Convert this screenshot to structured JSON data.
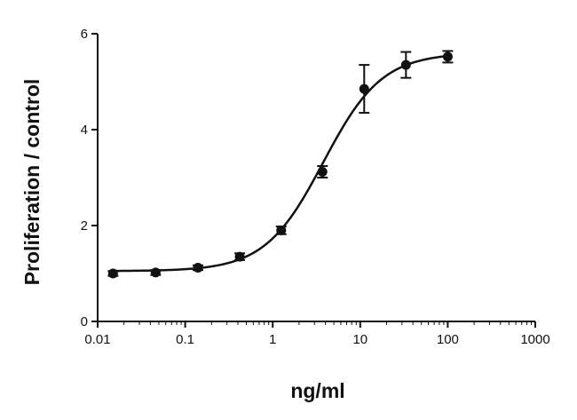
{
  "chart_data": {
    "type": "scatter",
    "title": "",
    "xlabel": "ng/ml",
    "ylabel": "Proliferation / control",
    "x_scale": "log",
    "xlim": [
      0.01,
      1000
    ],
    "ylim": [
      0,
      6
    ],
    "x_ticks": [
      "0.01",
      "0.1",
      "1",
      "10",
      "100",
      "1000"
    ],
    "x_tick_values": [
      0.01,
      0.1,
      1,
      10,
      100,
      1000
    ],
    "y_ticks": [
      "0",
      "2",
      "4",
      "6"
    ],
    "y_tick_values": [
      0,
      2,
      4,
      6
    ],
    "grid": false,
    "series": [
      {
        "points": [
          {
            "x": 0.015,
            "y": 1.0,
            "err": 0.05
          },
          {
            "x": 0.046,
            "y": 1.02,
            "err": 0.05
          },
          {
            "x": 0.14,
            "y": 1.12,
            "err": 0.05
          },
          {
            "x": 0.42,
            "y": 1.35,
            "err": 0.07
          },
          {
            "x": 1.25,
            "y": 1.9,
            "err": 0.08
          },
          {
            "x": 3.7,
            "y": 3.12,
            "err": 0.12
          },
          {
            "x": 11.1,
            "y": 4.85,
            "err": 0.5
          },
          {
            "x": 33.3,
            "y": 5.35,
            "err": 0.27
          },
          {
            "x": 100,
            "y": 5.52,
            "err": 0.12
          }
        ]
      }
    ],
    "fit_curve": {
      "bottom": 1.05,
      "top": 5.6,
      "ec50": 3.8,
      "hill": 1.3
    },
    "colors": {
      "marks": "#111111"
    }
  }
}
